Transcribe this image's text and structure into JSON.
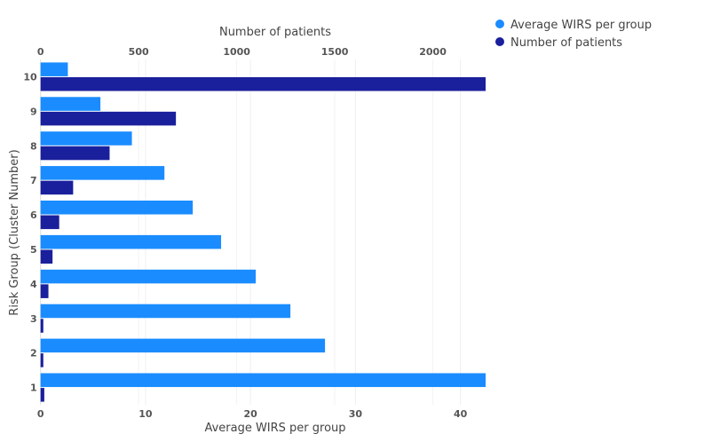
{
  "chart_data": {
    "type": "bar",
    "orientation": "horizontal",
    "categories": [
      "1",
      "2",
      "3",
      "4",
      "5",
      "6",
      "7",
      "8",
      "9",
      "10"
    ],
    "series": [
      {
        "name": "Average WIRS per group",
        "axis": "bottom",
        "color": "#1a8cff",
        "values": [
          42.4,
          27.1,
          23.8,
          20.5,
          17.2,
          14.5,
          11.8,
          8.7,
          5.7,
          2.6
        ]
      },
      {
        "name": "Number of patients",
        "axis": "top",
        "color": "#1a1f9c",
        "values": [
          19,
          14,
          14,
          40,
          61,
          95,
          166,
          352,
          690,
          2269
        ]
      }
    ],
    "xlabel_bottom": "Average WIRS per group",
    "xlabel_top": "Number of patients",
    "ylabel": "Risk Group (Cluster Number)",
    "xlim_bottom": [
      0,
      42.4
    ],
    "xlim_top": [
      0,
      2269
    ],
    "xticks_bottom": [
      0,
      10,
      20,
      30,
      40
    ],
    "xticks_top": [
      0,
      500,
      1000,
      1500,
      2000
    ],
    "grid": true,
    "legend_placement": "top-right"
  }
}
